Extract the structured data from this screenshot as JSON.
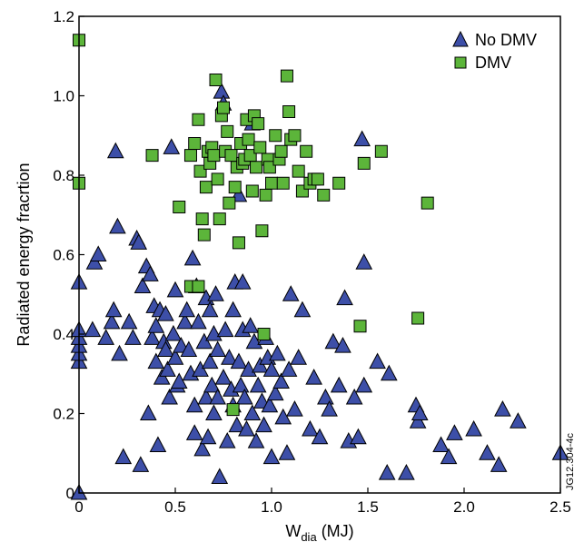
{
  "chart_data": {
    "type": "scatter",
    "xlabel_main": "W",
    "xlabel_sub": "dia",
    "xlabel_unit": " (MJ)",
    "ylabel": "Radiated energy fracrtion",
    "xlim": [
      0,
      2.5
    ],
    "ylim": [
      0,
      1.2
    ],
    "xticks": [
      "0",
      "0.5",
      "1.0",
      "1.5",
      "2.0",
      "2.5"
    ],
    "yticks": [
      "0",
      "0.2",
      "0.4",
      "0.6",
      "0.8",
      "1.0",
      "1.2"
    ],
    "grid": false,
    "legend_position": "top-right",
    "side_note": "JG12.304-4c",
    "series": [
      {
        "name": "No DMV",
        "marker": "triangle",
        "color": "#3d4fa8",
        "points": [
          [
            0,
            0.0
          ],
          [
            0,
            0.33
          ],
          [
            0,
            0.35
          ],
          [
            0,
            0.37
          ],
          [
            0,
            0.39
          ],
          [
            0,
            0.41
          ],
          [
            0,
            0.53
          ],
          [
            0.07,
            0.41
          ],
          [
            0.08,
            0.58
          ],
          [
            0.1,
            0.6
          ],
          [
            0.14,
            0.39
          ],
          [
            0.17,
            0.43
          ],
          [
            0.18,
            0.46
          ],
          [
            0.19,
            0.86
          ],
          [
            0.2,
            0.67
          ],
          [
            0.21,
            0.35
          ],
          [
            0.23,
            0.09
          ],
          [
            0.26,
            0.43
          ],
          [
            0.28,
            0.39
          ],
          [
            0.3,
            0.64
          ],
          [
            0.31,
            0.63
          ],
          [
            0.32,
            0.07
          ],
          [
            0.33,
            0.52
          ],
          [
            0.35,
            0.57
          ],
          [
            0.36,
            0.2
          ],
          [
            0.37,
            0.55
          ],
          [
            0.38,
            0.39
          ],
          [
            0.39,
            0.47
          ],
          [
            0.4,
            0.42
          ],
          [
            0.4,
            0.33
          ],
          [
            0.41,
            0.12
          ],
          [
            0.42,
            0.46
          ],
          [
            0.43,
            0.29
          ],
          [
            0.44,
            0.38
          ],
          [
            0.45,
            0.36
          ],
          [
            0.45,
            0.45
          ],
          [
            0.46,
            0.31
          ],
          [
            0.47,
            0.24
          ],
          [
            0.48,
            0.87
          ],
          [
            0.49,
            0.4
          ],
          [
            0.5,
            0.34
          ],
          [
            0.5,
            0.51
          ],
          [
            0.51,
            0.27
          ],
          [
            0.52,
            0.28
          ],
          [
            0.53,
            0.37
          ],
          [
            0.55,
            0.43
          ],
          [
            0.56,
            0.46
          ],
          [
            0.57,
            0.36
          ],
          [
            0.58,
            0.3
          ],
          [
            0.59,
            0.59
          ],
          [
            0.6,
            0.22
          ],
          [
            0.6,
            0.15
          ],
          [
            0.61,
            0.52
          ],
          [
            0.62,
            0.43
          ],
          [
            0.63,
            0.31
          ],
          [
            0.64,
            0.11
          ],
          [
            0.65,
            0.38
          ],
          [
            0.66,
            0.24
          ],
          [
            0.66,
            0.49
          ],
          [
            0.67,
            0.14
          ],
          [
            0.68,
            0.33
          ],
          [
            0.68,
            0.46
          ],
          [
            0.69,
            0.27
          ],
          [
            0.7,
            0.4
          ],
          [
            0.7,
            0.2
          ],
          [
            0.71,
            0.5
          ],
          [
            0.72,
            0.24
          ],
          [
            0.72,
            0.36
          ],
          [
            0.73,
            0.04
          ],
          [
            0.74,
            1.01
          ],
          [
            0.75,
            0.98
          ],
          [
            0.75,
            0.29
          ],
          [
            0.76,
            0.41
          ],
          [
            0.77,
            0.13
          ],
          [
            0.78,
            0.34
          ],
          [
            0.79,
            0.26
          ],
          [
            0.8,
            0.22
          ],
          [
            0.8,
            0.46
          ],
          [
            0.81,
            0.53
          ],
          [
            0.82,
            0.17
          ],
          [
            0.83,
            0.33
          ],
          [
            0.83,
            0.75
          ],
          [
            0.84,
            0.27
          ],
          [
            0.85,
            0.41
          ],
          [
            0.85,
            0.53
          ],
          [
            0.86,
            0.24
          ],
          [
            0.87,
            0.16
          ],
          [
            0.88,
            0.31
          ],
          [
            0.89,
            0.42
          ],
          [
            0.9,
            0.93
          ],
          [
            0.9,
            0.2
          ],
          [
            0.91,
            0.38
          ],
          [
            0.92,
            0.13
          ],
          [
            0.93,
            0.27
          ],
          [
            0.94,
            0.32
          ],
          [
            0.95,
            0.23
          ],
          [
            0.96,
            0.17
          ],
          [
            0.97,
            0.39
          ],
          [
            0.98,
            0.34
          ],
          [
            0.99,
            0.22
          ],
          [
            1.0,
            0.31
          ],
          [
            1.0,
            0.09
          ],
          [
            1.02,
            0.25
          ],
          [
            1.03,
            0.35
          ],
          [
            1.05,
            0.28
          ],
          [
            1.06,
            0.19
          ],
          [
            1.08,
            0.1
          ],
          [
            1.09,
            0.31
          ],
          [
            1.1,
            0.5
          ],
          [
            1.12,
            0.21
          ],
          [
            1.14,
            0.34
          ],
          [
            1.16,
            0.46
          ],
          [
            1.2,
            0.16
          ],
          [
            1.22,
            0.29
          ],
          [
            1.25,
            0.14
          ],
          [
            1.28,
            0.24
          ],
          [
            1.3,
            0.21
          ],
          [
            1.32,
            0.38
          ],
          [
            1.35,
            0.27
          ],
          [
            1.37,
            0.37
          ],
          [
            1.38,
            0.49
          ],
          [
            1.4,
            0.13
          ],
          [
            1.43,
            0.24
          ],
          [
            1.45,
            0.14
          ],
          [
            1.47,
            0.89
          ],
          [
            1.48,
            0.58
          ],
          [
            1.48,
            0.27
          ],
          [
            1.55,
            0.33
          ],
          [
            1.6,
            0.05
          ],
          [
            1.61,
            0.3
          ],
          [
            1.7,
            0.05
          ],
          [
            1.75,
            0.22
          ],
          [
            1.76,
            0.18
          ],
          [
            1.77,
            0.2
          ],
          [
            1.88,
            0.12
          ],
          [
            1.92,
            0.09
          ],
          [
            1.95,
            0.15
          ],
          [
            2.05,
            0.16
          ],
          [
            2.12,
            0.1
          ],
          [
            2.18,
            0.07
          ],
          [
            2.2,
            0.21
          ],
          [
            2.28,
            0.18
          ],
          [
            2.5,
            0.1
          ]
        ]
      },
      {
        "name": "DMV",
        "marker": "square",
        "color": "#5cb53a",
        "points": [
          [
            0,
            1.14
          ],
          [
            0,
            0.78
          ],
          [
            0.38,
            0.85
          ],
          [
            0.52,
            0.72
          ],
          [
            0.58,
            0.85
          ],
          [
            0.6,
            0.88
          ],
          [
            0.62,
            0.94
          ],
          [
            0.63,
            0.81
          ],
          [
            0.64,
            0.69
          ],
          [
            0.65,
            0.65
          ],
          [
            0.66,
            0.77
          ],
          [
            0.67,
            0.86
          ],
          [
            0.68,
            0.83
          ],
          [
            0.69,
            0.87
          ],
          [
            0.7,
            0.85
          ],
          [
            0.71,
            1.04
          ],
          [
            0.72,
            0.79
          ],
          [
            0.73,
            0.69
          ],
          [
            0.74,
            0.95
          ],
          [
            0.75,
            0.97
          ],
          [
            0.76,
            0.86
          ],
          [
            0.77,
            0.91
          ],
          [
            0.78,
            0.73
          ],
          [
            0.79,
            0.85
          ],
          [
            0.8,
            0.21
          ],
          [
            0.81,
            0.77
          ],
          [
            0.82,
            0.82
          ],
          [
            0.83,
            0.63
          ],
          [
            0.84,
            0.88
          ],
          [
            0.85,
            0.83
          ],
          [
            0.86,
            0.84
          ],
          [
            0.87,
            0.94
          ],
          [
            0.88,
            0.89
          ],
          [
            0.89,
            0.85
          ],
          [
            0.9,
            0.76
          ],
          [
            0.91,
            0.95
          ],
          [
            0.92,
            0.82
          ],
          [
            0.93,
            0.93
          ],
          [
            0.94,
            0.87
          ],
          [
            0.95,
            0.66
          ],
          [
            0.96,
            0.4
          ],
          [
            0.97,
            0.75
          ],
          [
            0.98,
            0.84
          ],
          [
            0.99,
            0.82
          ],
          [
            1.0,
            0.78
          ],
          [
            1.02,
            0.9
          ],
          [
            1.04,
            0.84
          ],
          [
            1.05,
            0.86
          ],
          [
            1.06,
            0.78
          ],
          [
            1.08,
            1.05
          ],
          [
            1.09,
            0.96
          ],
          [
            1.1,
            0.89
          ],
          [
            1.12,
            0.9
          ],
          [
            1.14,
            0.81
          ],
          [
            1.16,
            0.76
          ],
          [
            1.18,
            0.86
          ],
          [
            1.2,
            0.78
          ],
          [
            1.22,
            0.79
          ],
          [
            1.24,
            0.79
          ],
          [
            1.27,
            0.75
          ],
          [
            1.35,
            0.78
          ],
          [
            1.46,
            0.42
          ],
          [
            1.48,
            0.83
          ],
          [
            1.57,
            0.86
          ],
          [
            1.76,
            0.44
          ],
          [
            1.81,
            0.73
          ],
          [
            0.58,
            0.52
          ],
          [
            0.62,
            0.52
          ]
        ]
      }
    ]
  }
}
